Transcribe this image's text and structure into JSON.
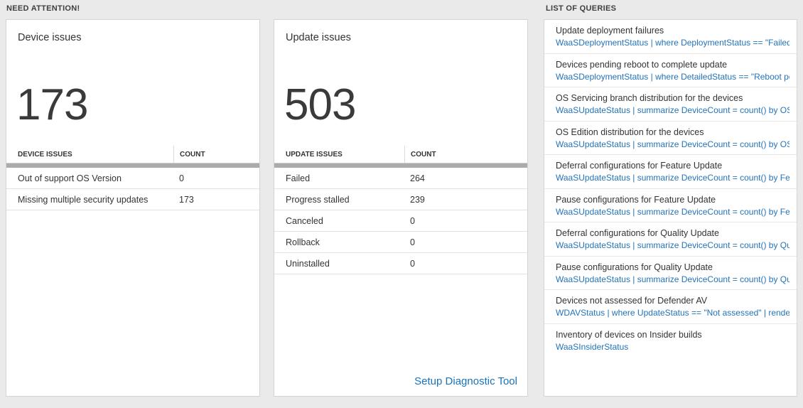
{
  "headings": {
    "need_attention": "NEED ATTENTION!",
    "list_of_queries": "LIST OF QUERIES"
  },
  "colors": {
    "background": "#eaeaea",
    "link": "#2373b9",
    "setup_link": "#1673bd",
    "scrollbar": "#ababab"
  },
  "device_card": {
    "title": "Device issues",
    "big_number": "173",
    "table": {
      "headers": [
        "DEVICE ISSUES",
        "COUNT"
      ],
      "rows": [
        {
          "label": "Out of support OS Version",
          "count": "0"
        },
        {
          "label": "Missing multiple security updates",
          "count": "173"
        }
      ]
    }
  },
  "update_card": {
    "title": "Update issues",
    "big_number": "503",
    "table": {
      "headers": [
        "UPDATE ISSUES",
        "COUNT"
      ],
      "rows": [
        {
          "label": "Failed",
          "count": "264"
        },
        {
          "label": "Progress stalled",
          "count": "239"
        },
        {
          "label": "Canceled",
          "count": "0"
        },
        {
          "label": "Rollback",
          "count": "0"
        },
        {
          "label": "Uninstalled",
          "count": "0"
        }
      ]
    },
    "footer_link": "Setup Diagnostic Tool"
  },
  "queries_card": {
    "items": [
      {
        "title": "Update deployment failures",
        "query": "WaaSDeploymentStatus | where DeploymentStatus == \"Failed\" |…"
      },
      {
        "title": "Devices pending reboot to complete update",
        "query": "WaaSDeploymentStatus | where DetailedStatus == \"Reboot pend…"
      },
      {
        "title": "OS Servicing branch distribution for the devices",
        "query": "WaaSUpdateStatus | summarize DeviceCount = count() by OSSer…"
      },
      {
        "title": "OS Edition distribution for the devices",
        "query": "WaaSUpdateStatus | summarize DeviceCount = count() by OSEdit…"
      },
      {
        "title": "Deferral configurations for Feature Update",
        "query": "WaaSUpdateStatus | summarize DeviceCount = count() by Featur…"
      },
      {
        "title": "Pause configurations for Feature Update",
        "query": "WaaSUpdateStatus | summarize DeviceCount = count() by Featur…"
      },
      {
        "title": "Deferral configurations for Quality Update",
        "query": "WaaSUpdateStatus | summarize DeviceCount = count() by Qualit…"
      },
      {
        "title": "Pause configurations for Quality Update",
        "query": "WaaSUpdateStatus | summarize DeviceCount = count() by Qualit…"
      },
      {
        "title": "Devices not assessed for Defender AV",
        "query": "WDAVStatus | where UpdateStatus == \"Not assessed\" | render ta…"
      },
      {
        "title": "Inventory of devices on Insider builds",
        "query": "WaaSInsiderStatus"
      }
    ]
  }
}
